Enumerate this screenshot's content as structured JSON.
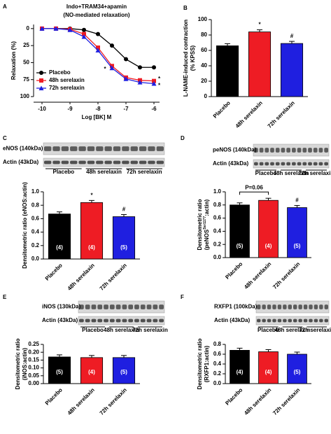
{
  "chart_data": [
    {
      "type": "line",
      "panel": "A",
      "title": "Indo+TRAM34+apamin",
      "subtitle": "(NO-mediated relaxation)",
      "ylabel": "Relaxation (%)",
      "xlabel": "Log [BK] M",
      "x": [
        -10,
        -9.5,
        -9,
        -8.5,
        -8,
        -7.5,
        -7,
        -6.5,
        -6
      ],
      "xlim": [
        -10.3,
        -5.8
      ],
      "xticks": [
        -10,
        -9,
        -8,
        -7,
        -6
      ],
      "ylim": [
        -6,
        100
      ],
      "yticks": [
        0,
        25,
        50,
        75,
        100
      ],
      "inverted": true,
      "series": [
        {
          "name": "Placebo",
          "color": "#000000",
          "marker": "circle",
          "values": [
            0,
            0,
            0,
            2,
            8,
            25,
            45,
            57,
            57
          ]
        },
        {
          "name": "48h serelaxin",
          "color": "#ee1c24",
          "marker": "square",
          "values": [
            0,
            0,
            1,
            8,
            28,
            55,
            72,
            76,
            77
          ],
          "end_label": "*"
        },
        {
          "name": "72h serelaxin",
          "color": "#1f1fe0",
          "marker": "triangle",
          "values": [
            0,
            0,
            2,
            12,
            32,
            58,
            74,
            79,
            81
          ],
          "end_label": "*"
        }
      ],
      "annotations": [
        "*"
      ]
    },
    {
      "type": "bar",
      "panel": "B",
      "ylabel": [
        "L-NAME-induced contraction",
        "(% KPSS)"
      ],
      "categories": [
        "Placebo",
        "48h serelaxin",
        "72h serelaxin"
      ],
      "values": [
        66,
        84,
        69
      ],
      "colors": [
        "#000000",
        "#ee1c24",
        "#1f1fe0"
      ],
      "ylim": [
        0,
        100
      ],
      "yticks": [
        0,
        20,
        40,
        60,
        80,
        100
      ],
      "bar_annotations": [
        null,
        "*",
        "#"
      ]
    },
    {
      "type": "bar",
      "panel": "C",
      "blot_labels": [
        "eNOS (140kDa)",
        "Actin (43kDa)"
      ],
      "blot_groups": [
        "Placebo",
        "48h serelaxin",
        "72h serelaxin"
      ],
      "ylabel": [
        "Densitometric ratio (eNOS:actin)"
      ],
      "categories": [
        "Placebo",
        "48h serelaxin",
        "72h serelaxin"
      ],
      "values": [
        0.67,
        0.84,
        0.63
      ],
      "colors": [
        "#000000",
        "#ee1c24",
        "#1f1fe0"
      ],
      "ylim": [
        0,
        1
      ],
      "yticks": [
        {
          "value": 0,
          "label": "0.0"
        },
        0.2,
        0.4,
        0.6,
        0.8,
        {
          "value": 1,
          "label": "1.0"
        }
      ],
      "n_labels": [
        "(4)",
        "(4)",
        "(5)"
      ],
      "bar_annotations": [
        null,
        "*",
        "#"
      ]
    },
    {
      "type": "bar",
      "panel": "D",
      "blot_labels": [
        "peNOS (140kDa)",
        "Actin (43kDa)"
      ],
      "blot_groups": [
        "Placebo",
        "48h serelaxin",
        "72h serelaxin"
      ],
      "ylabel": [
        "Densitometric ratio",
        [
          "(peNOS",
          "Ser1177",
          ":actin)"
        ]
      ],
      "categories": [
        "Placebo",
        "48h serelaxin",
        "72h serelaxin"
      ],
      "values": [
        0.8,
        0.87,
        0.76
      ],
      "colors": [
        "#000000",
        "#ee1c24",
        "#1f1fe0"
      ],
      "ylim": [
        0,
        1
      ],
      "yticks": [
        {
          "value": 0,
          "label": "0.0"
        },
        0.2,
        0.4,
        0.6,
        0.8,
        {
          "value": 1,
          "label": "1.0"
        }
      ],
      "n_labels": [
        "(5)",
        "(4)",
        "(5)"
      ],
      "bar_annotations": [
        null,
        null,
        "#"
      ],
      "bracket_label": "P=0.06"
    },
    {
      "type": "bar",
      "panel": "E",
      "blot_labels": [
        "iNOS (130kDa)",
        "Actin (43kDa)"
      ],
      "blot_groups": [
        "Placebo",
        "48h serelaxin",
        "72h serelaxin"
      ],
      "ylabel": [
        "Densitometric ratio",
        "(iNOS:actin)"
      ],
      "categories": [
        "Placebo",
        "48h serelaxin",
        "72h serelaxin"
      ],
      "values": [
        0.17,
        0.166,
        0.166
      ],
      "colors": [
        "#000000",
        "#ee1c24",
        "#1f1fe0"
      ],
      "ylim": [
        0,
        0.25
      ],
      "yticks": [
        {
          "value": 0,
          "label": "0.00"
        },
        0.05,
        {
          "value": 0.1,
          "label": "0.10"
        },
        0.15,
        {
          "value": 0.2,
          "label": "0.20"
        },
        0.25
      ],
      "n_labels": [
        "(5)",
        "(4)",
        "(5)"
      ]
    },
    {
      "type": "bar",
      "panel": "F",
      "blot_labels": [
        "RXFP1 (100kDa)",
        "Actin (43kDa)"
      ],
      "blot_groups": [
        "Placebo",
        "48h serelaxin",
        "72h serelaxin"
      ],
      "ylabel": [
        "Densitometric ratio",
        "(RXFP1:actin)"
      ],
      "categories": [
        "Placebo",
        "48h serelaxin",
        "72h serelaxin"
      ],
      "values": [
        0.68,
        0.65,
        0.6
      ],
      "colors": [
        "#000000",
        "#ee1c24",
        "#1f1fe0"
      ],
      "ylim": [
        0,
        0.8
      ],
      "yticks": [
        {
          "value": 0,
          "label": "0.0"
        },
        0.2,
        0.4,
        0.6,
        0.8
      ],
      "n_labels": [
        "(4)",
        "(4)",
        "(5)"
      ]
    }
  ]
}
